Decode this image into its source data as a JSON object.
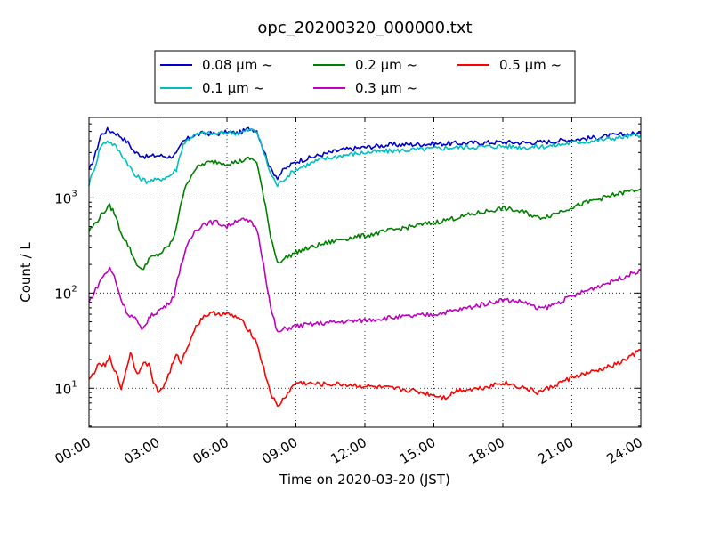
{
  "chart_data": {
    "type": "line",
    "title": "opc_20200320_000000.txt",
    "xlabel": "Time on 2020-03-20 (JST)",
    "ylabel": "Count / L",
    "yscale": "log",
    "xlim": [
      0,
      24
    ],
    "ylim": [
      3.9,
      7000
    ],
    "grid": true,
    "legend_position": "top-center",
    "x_tick_labels": [
      "00:00",
      "03:00",
      "06:00",
      "09:00",
      "12:00",
      "15:00",
      "18:00",
      "21:00",
      "24:00"
    ],
    "y_tick_labels": [
      {
        "value": 10,
        "base": "10",
        "exp": "1"
      },
      {
        "value": 100,
        "base": "10",
        "exp": "2"
      },
      {
        "value": 1000,
        "base": "10",
        "exp": "3"
      }
    ],
    "x_unit": "hours",
    "series": [
      {
        "name": "0.08 μm ~",
        "color": "#0000cc",
        "points": [
          [
            0,
            1900
          ],
          [
            0.3,
            3000
          ],
          [
            0.5,
            4500
          ],
          [
            0.8,
            5200
          ],
          [
            1.1,
            4900
          ],
          [
            1.4,
            4400
          ],
          [
            1.7,
            3800
          ],
          [
            2,
            3000
          ],
          [
            2.5,
            2700
          ],
          [
            3,
            2800
          ],
          [
            3.5,
            2700
          ],
          [
            3.8,
            2900
          ],
          [
            4.1,
            3900
          ],
          [
            4.5,
            4500
          ],
          [
            5,
            4800
          ],
          [
            5.5,
            4700
          ],
          [
            6,
            4900
          ],
          [
            6.5,
            4800
          ],
          [
            7,
            5400
          ],
          [
            7.3,
            5100
          ],
          [
            7.6,
            3200
          ],
          [
            7.9,
            2000
          ],
          [
            8.2,
            1650
          ],
          [
            8.5,
            2000
          ],
          [
            9,
            2400
          ],
          [
            10,
            2800
          ],
          [
            11,
            3200
          ],
          [
            12,
            3400
          ],
          [
            13,
            3600
          ],
          [
            14,
            3650
          ],
          [
            15,
            3700
          ],
          [
            16,
            3750
          ],
          [
            17,
            3800
          ],
          [
            18,
            3850
          ],
          [
            19,
            3800
          ],
          [
            20,
            3900
          ],
          [
            21,
            4100
          ],
          [
            22,
            4300
          ],
          [
            23,
            4600
          ],
          [
            24,
            4800
          ]
        ]
      },
      {
        "name": "0.1 μm ~",
        "color": "#00bfbf",
        "points": [
          [
            0,
            1400
          ],
          [
            0.3,
            2300
          ],
          [
            0.5,
            3500
          ],
          [
            0.8,
            4000
          ],
          [
            1.1,
            3600
          ],
          [
            1.4,
            2900
          ],
          [
            1.7,
            2300
          ],
          [
            2,
            1700
          ],
          [
            2.5,
            1500
          ],
          [
            3,
            1550
          ],
          [
            3.5,
            1700
          ],
          [
            3.8,
            2000
          ],
          [
            4.1,
            3700
          ],
          [
            4.5,
            4500
          ],
          [
            5,
            4800
          ],
          [
            5.5,
            4700
          ],
          [
            6,
            4900
          ],
          [
            6.5,
            4800
          ],
          [
            7,
            5200
          ],
          [
            7.3,
            5000
          ],
          [
            7.6,
            3000
          ],
          [
            7.9,
            1800
          ],
          [
            8.2,
            1350
          ],
          [
            8.5,
            1600
          ],
          [
            9,
            2000
          ],
          [
            10,
            2500
          ],
          [
            11,
            2800
          ],
          [
            12,
            3000
          ],
          [
            13,
            3100
          ],
          [
            14,
            3200
          ],
          [
            15,
            3300
          ],
          [
            16,
            3400
          ],
          [
            17,
            3450
          ],
          [
            18,
            3500
          ],
          [
            19,
            3400
          ],
          [
            20,
            3500
          ],
          [
            21,
            3800
          ],
          [
            22,
            4000
          ],
          [
            23,
            4300
          ],
          [
            24,
            4600
          ]
        ]
      },
      {
        "name": "0.2 μm ~",
        "color": "#008000",
        "points": [
          [
            0,
            450
          ],
          [
            0.3,
            550
          ],
          [
            0.6,
            700
          ],
          [
            0.9,
            820
          ],
          [
            1.1,
            700
          ],
          [
            1.4,
            430
          ],
          [
            1.7,
            320
          ],
          [
            2,
            220
          ],
          [
            2.3,
            170
          ],
          [
            2.6,
            230
          ],
          [
            3,
            250
          ],
          [
            3.4,
            300
          ],
          [
            3.7,
            380
          ],
          [
            4,
            900
          ],
          [
            4.3,
            1500
          ],
          [
            4.6,
            2000
          ],
          [
            5,
            2300
          ],
          [
            5.5,
            2400
          ],
          [
            6,
            2300
          ],
          [
            6.5,
            2400
          ],
          [
            7,
            2600
          ],
          [
            7.3,
            2400
          ],
          [
            7.6,
            1000
          ],
          [
            7.9,
            400
          ],
          [
            8.2,
            210
          ],
          [
            8.5,
            230
          ],
          [
            9,
            270
          ],
          [
            10,
            320
          ],
          [
            11,
            370
          ],
          [
            12,
            400
          ],
          [
            13,
            450
          ],
          [
            14,
            500
          ],
          [
            15,
            550
          ],
          [
            16,
            620
          ],
          [
            17,
            700
          ],
          [
            18,
            780
          ],
          [
            19,
            700
          ],
          [
            19.5,
            620
          ],
          [
            20,
            650
          ],
          [
            21,
            800
          ],
          [
            22,
            950
          ],
          [
            23,
            1100
          ],
          [
            24,
            1250
          ]
        ]
      },
      {
        "name": "0.3 μm ~",
        "color": "#bf00bf",
        "points": [
          [
            0,
            80
          ],
          [
            0.3,
            110
          ],
          [
            0.6,
            150
          ],
          [
            0.9,
            180
          ],
          [
            1.1,
            150
          ],
          [
            1.4,
            85
          ],
          [
            1.7,
            60
          ],
          [
            2,
            55
          ],
          [
            2.3,
            40
          ],
          [
            2.6,
            55
          ],
          [
            3,
            65
          ],
          [
            3.4,
            75
          ],
          [
            3.7,
            95
          ],
          [
            4,
            200
          ],
          [
            4.3,
            320
          ],
          [
            4.6,
            450
          ],
          [
            5,
            540
          ],
          [
            5.5,
            560
          ],
          [
            6,
            500
          ],
          [
            6.5,
            600
          ],
          [
            7,
            560
          ],
          [
            7.3,
            480
          ],
          [
            7.6,
            200
          ],
          [
            7.9,
            70
          ],
          [
            8.2,
            38
          ],
          [
            8.5,
            42
          ],
          [
            9,
            45
          ],
          [
            10,
            48
          ],
          [
            11,
            50
          ],
          [
            12,
            52
          ],
          [
            13,
            55
          ],
          [
            14,
            57
          ],
          [
            15,
            60
          ],
          [
            16,
            66
          ],
          [
            17,
            75
          ],
          [
            18,
            85
          ],
          [
            19,
            80
          ],
          [
            19.5,
            68
          ],
          [
            20,
            72
          ],
          [
            21,
            92
          ],
          [
            22,
            115
          ],
          [
            23,
            140
          ],
          [
            24,
            175
          ]
        ]
      },
      {
        "name": "0.5 μm ~",
        "color": "#ff0000",
        "points": [
          [
            0,
            12
          ],
          [
            0.3,
            16
          ],
          [
            0.5,
            18
          ],
          [
            0.7,
            17
          ],
          [
            0.9,
            21
          ],
          [
            1.1,
            16
          ],
          [
            1.4,
            10
          ],
          [
            1.6,
            15
          ],
          [
            1.8,
            24
          ],
          [
            1.9,
            20
          ],
          [
            2.1,
            14
          ],
          [
            2.3,
            18
          ],
          [
            2.6,
            18
          ],
          [
            2.8,
            12
          ],
          [
            3,
            9
          ],
          [
            3.3,
            11
          ],
          [
            3.6,
            17
          ],
          [
            3.8,
            22
          ],
          [
            4,
            19
          ],
          [
            4.2,
            24
          ],
          [
            4.5,
            38
          ],
          [
            4.8,
            50
          ],
          [
            5,
            58
          ],
          [
            5.5,
            62
          ],
          [
            6,
            60
          ],
          [
            6.5,
            55
          ],
          [
            7,
            40
          ],
          [
            7.3,
            30
          ],
          [
            7.6,
            16
          ],
          [
            7.9,
            9
          ],
          [
            8.2,
            6.3
          ],
          [
            8.5,
            8
          ],
          [
            9,
            11.5
          ],
          [
            10,
            11
          ],
          [
            11,
            11
          ],
          [
            12,
            10.5
          ],
          [
            13,
            10
          ],
          [
            14,
            9.5
          ],
          [
            15,
            8.5
          ],
          [
            15.5,
            8
          ],
          [
            16,
            9.5
          ],
          [
            17,
            10
          ],
          [
            18,
            11.5
          ],
          [
            19,
            10
          ],
          [
            19.5,
            9
          ],
          [
            20,
            10
          ],
          [
            21,
            13
          ],
          [
            22,
            15
          ],
          [
            23,
            18
          ],
          [
            24,
            25
          ]
        ]
      }
    ]
  }
}
